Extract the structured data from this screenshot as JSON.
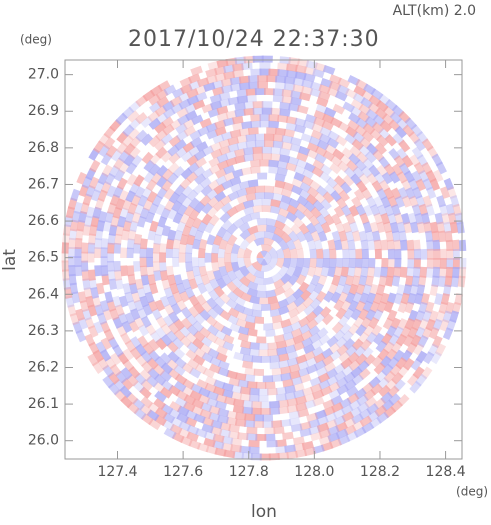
{
  "chart_data": {
    "type": "radar-ppi",
    "title": "2017/10/24 22:37:30",
    "subtitle": "ALT(km) 2.0",
    "x_label": "lon",
    "y_label": "lat",
    "x_unit": "(deg)",
    "y_unit": "(deg)",
    "xlim": [
      127.24,
      128.45
    ],
    "ylim": [
      25.95,
      27.04
    ],
    "xticks": [
      127.4,
      127.6,
      127.8,
      {
        "value": 128,
        "label": "128.0"
      },
      128.2,
      128.4
    ],
    "yticks": [
      {
        "value": 26,
        "label": "26.0"
      },
      26.1,
      26.2,
      26.3,
      26.4,
      26.5,
      26.6,
      26.7,
      26.8,
      26.9,
      {
        "value": 27,
        "label": "27.0"
      }
    ]
  }
}
